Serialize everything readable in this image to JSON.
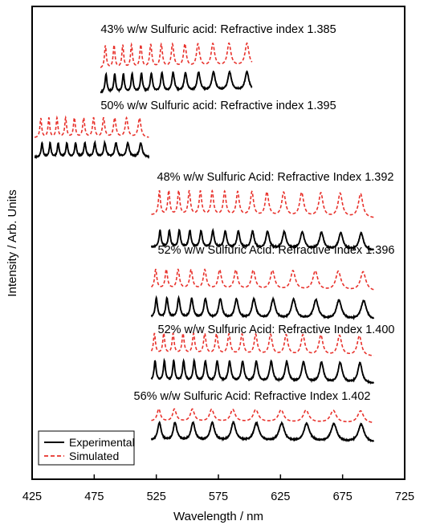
{
  "chart_data": {
    "type": "line",
    "xlabel": "Wavelength / nm",
    "ylabel": "Intensity / Arb. Units",
    "xlim": [
      425,
      725
    ],
    "xticks": [
      425,
      475,
      525,
      575,
      625,
      675,
      725
    ],
    "yticks": false,
    "grid": false,
    "legend": {
      "placement": "bottom-left",
      "entries": [
        {
          "label": "Experimental",
          "color": "#000000",
          "style": "solid"
        },
        {
          "label": "Simulated",
          "color": "#e8302a",
          "style": "dashed"
        }
      ]
    },
    "panels": [
      {
        "title": "43% w/w Sulfuric acid: Refractive index 1.385",
        "x_range": [
          480,
          602
        ],
        "experimental_peaks": [
          484.5,
          491.5,
          498.5,
          505.5,
          513,
          521,
          529.5,
          538.5,
          548.5,
          559,
          571,
          584,
          598
        ],
        "simulated_peaks": [
          484,
          491,
          498,
          505,
          512.5,
          520.5,
          529,
          538,
          548,
          558.5,
          570.5,
          583.5,
          598
        ]
      },
      {
        "title": "50% w/w Sulfuric acid: Refractive index 1.395",
        "x_range": [
          427,
          519
        ],
        "experimental_peaks": [
          433,
          439.5,
          446,
          453,
          460,
          467.5,
          475.5,
          483.5,
          492.5,
          502,
          512.5
        ],
        "simulated_peaks": [
          432,
          438.5,
          445,
          452,
          459,
          466.5,
          474.5,
          482.5,
          491.5,
          501,
          511.5
        ]
      },
      {
        "title": "48% w/w Sulfuric Acid: Refractive Index 1.392",
        "x_range": [
          521,
          700
        ],
        "experimental_peaks": [
          528,
          535.5,
          543.5,
          552,
          561,
          570.5,
          580.5,
          591,
          602.5,
          614.5,
          628,
          642.5,
          658,
          673.5,
          690
        ],
        "simulated_peaks": [
          527.5,
          535,
          543,
          551.5,
          560.5,
          570,
          580,
          590.5,
          602,
          614,
          627.5,
          642,
          657.5,
          673,
          689.5
        ]
      },
      {
        "title": "52% w/w Sulfuric Acid: Refractive Index 1.396",
        "x_range": [
          521,
          700
        ],
        "experimental_peaks": [
          525,
          533.5,
          543,
          553.5,
          564.5,
          576.5,
          589.5,
          603.5,
          619,
          635.5,
          653.5,
          672,
          692
        ],
        "simulated_peaks": [
          524.5,
          533,
          542.5,
          553,
          564,
          576,
          589,
          603,
          618.5,
          635,
          653,
          671.5,
          691.5
        ]
      },
      {
        "title": "52% w/w Sulfuric Acid: Refractive Index 1.400",
        "x_range": [
          521,
          700
        ],
        "experimental_peaks": [
          524,
          531.5,
          539,
          547,
          555.5,
          564.5,
          574,
          584,
          594.5,
          605.5,
          617.5,
          630,
          643.5,
          658,
          673,
          689
        ],
        "simulated_peaks": [
          523.5,
          531,
          538.5,
          546.5,
          555,
          564,
          573.5,
          583.5,
          594,
          605,
          617,
          629.5,
          643,
          657.5,
          672.5,
          688.5
        ]
      },
      {
        "title": "56% w/w Sulfuric Acid: Refractive Index 1.402",
        "x_range": [
          521,
          700
        ],
        "experimental_peaks": [
          527.5,
          540,
          554.5,
          570,
          587,
          605.5,
          626,
          646,
          668,
          690
        ],
        "simulated_peaks": [
          527,
          539.5,
          554,
          569.5,
          586.5,
          605,
          625.5,
          645.5,
          667.5,
          689.5
        ]
      }
    ]
  }
}
